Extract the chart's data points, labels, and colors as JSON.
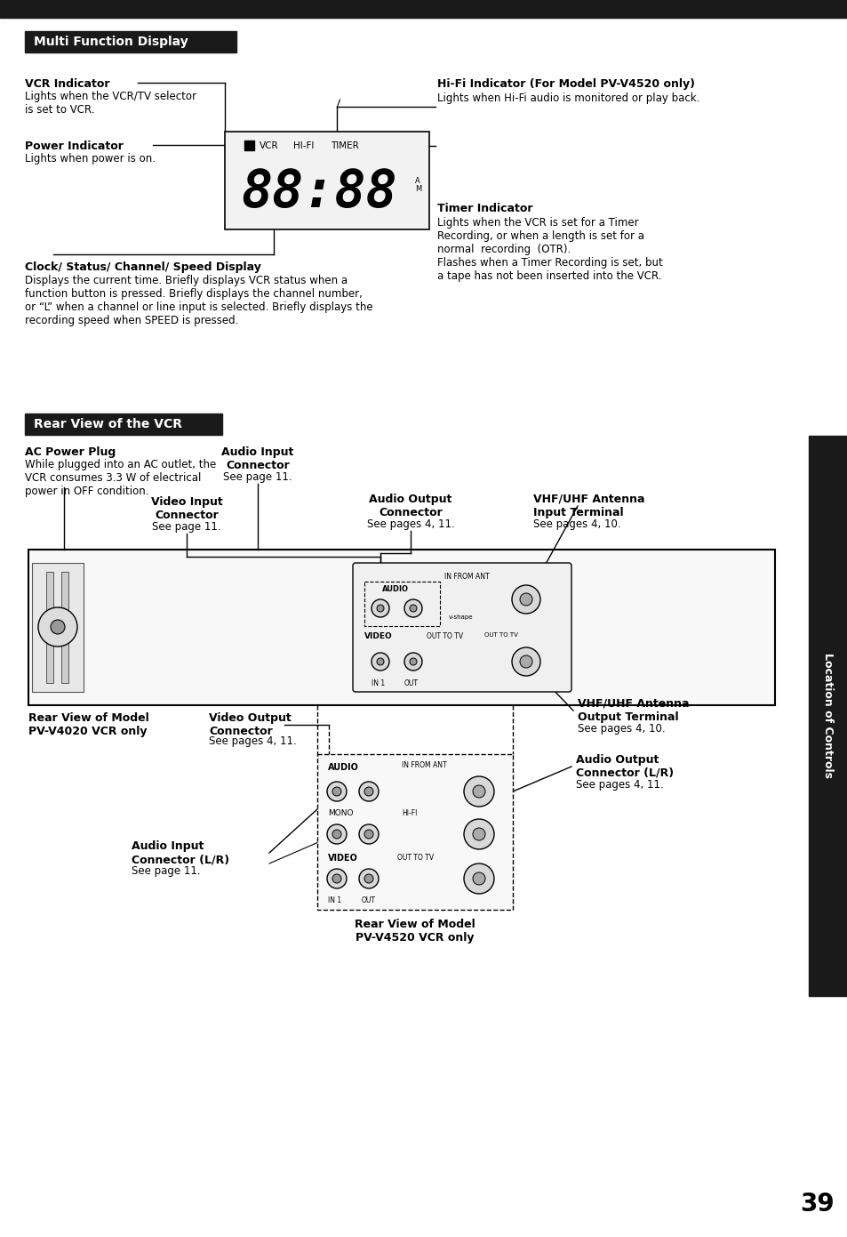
{
  "bg_color": "#ffffff",
  "page_number": "39",
  "section1_title": "Multi Function Display",
  "section1_title_bg": "#1a1a1a",
  "section1_title_color": "#ffffff",
  "section2_title": "Rear View of the VCR",
  "section2_title_bg": "#1a1a1a",
  "section2_title_color": "#ffffff",
  "sidebar_title": "Location of Controls",
  "sidebar_bg": "#1a1a1a",
  "sidebar_color": "#ffffff",
  "vcr_indicator_bold": "VCR Indicator",
  "vcr_indicator_text": "Lights when the VCR/TV selector\nis set to VCR.",
  "power_indicator_bold": "Power Indicator",
  "power_indicator_text": "Lights when power is on.",
  "hifi_indicator_bold": "Hi-Fi Indicator (For Model PV-V4520 only)",
  "hifi_indicator_text": "Lights when Hi-Fi audio is monitored or play back.",
  "timer_indicator_bold": "Timer Indicator",
  "timer_indicator_text": "Lights when the VCR is set for a Timer\nRecording, or when a length is set for a\nnormal  recording  (OTR).\nFlashes when a Timer Recording is set, but\na tape has not been inserted into the VCR.",
  "clock_display_bold": "Clock/ Status/ Channel/ Speed Display",
  "clock_display_text": "Displays the current time. Briefly displays VCR status when a\nfunction button is pressed. Briefly displays the channel number,\nor “L” when a channel or line input is selected. Briefly displays the\nrecording speed when SPEED is pressed.",
  "ac_power_bold": "AC Power Plug",
  "ac_power_text": "While plugged into an AC outlet, the\nVCR consumes 3.3 W of electrical\npower in OFF condition.",
  "audio_input_bold": "Audio Input\nConnector",
  "audio_input_text": "See page 11.",
  "video_input_bold": "Video Input\nConnector",
  "video_input_text": "See page 11.",
  "audio_output_bold": "Audio Output\nConnector",
  "audio_output_text": "See pages 4, 11.",
  "vhf_input_bold": "VHF/UHF Antenna\nInput Terminal",
  "vhf_input_text": "See pages 4, 10.",
  "vhf_output_bold": "VHF/UHF Antenna\nOutput Terminal",
  "vhf_output_text": "See pages 4, 10.",
  "rear_model1_bold": "Rear View of Model\nPV-V4020 VCR only",
  "video_output_bold": "Video Output\nConnector",
  "video_output_text": "See pages 4, 11.",
  "audio_output_lr_bold": "Audio Output\nConnector (L/R)",
  "audio_output_lr_text": "See pages 4, 11.",
  "audio_input_lr_bold": "Audio Input\nConnector (L/R)",
  "audio_input_lr_text": "See page 11.",
  "rear_model2_bold": "Rear View of Model\nPV-V4520 VCR only",
  "top_bar_color": "#1a1a1a",
  "top_bar_height": 20
}
